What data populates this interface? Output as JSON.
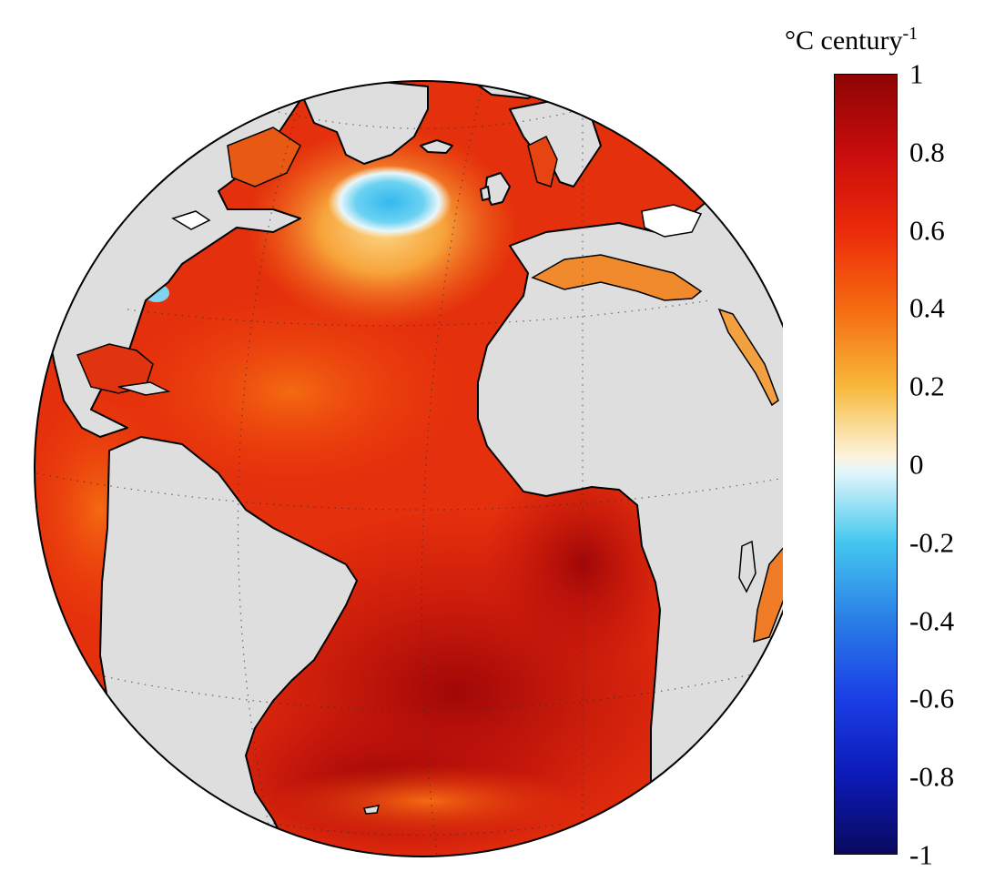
{
  "colorbar": {
    "title": "°C century",
    "title_superscript": "-1",
    "min": -1,
    "max": 1,
    "ticks": [
      {
        "value": 1,
        "label": "1"
      },
      {
        "value": 0.8,
        "label": "0.8"
      },
      {
        "value": 0.6,
        "label": "0.6"
      },
      {
        "value": 0.4,
        "label": "0.4"
      },
      {
        "value": 0.2,
        "label": "0.2"
      },
      {
        "value": 0,
        "label": "0"
      },
      {
        "value": -0.2,
        "label": "-0.2"
      },
      {
        "value": -0.4,
        "label": "-0.4"
      },
      {
        "value": -0.6,
        "label": "-0.6"
      },
      {
        "value": -0.8,
        "label": "-0.8"
      },
      {
        "value": -1,
        "label": "-1"
      }
    ],
    "colors": {
      "1": "#8e0404",
      "0.8": "#c80c0c",
      "0.6": "#ec2a0a",
      "0.4": "#f66a10",
      "0.2": "#f7b83a",
      "0.02": "#fdf4dc",
      "-0.02": "#e2f6fb",
      "-0.2": "#44c7ef",
      "-0.4": "#2a7ee6",
      "-0.6": "#1a3fe6",
      "-0.8": "#0c1ab8",
      "-1": "#0a0a5e"
    }
  },
  "map": {
    "projection": "orthographic",
    "region": "Atlantic Ocean",
    "land_color": "#dedede",
    "ocean_base_color": "#e42a0c",
    "coastline_color": "#000000",
    "graticule": "dotted"
  }
}
